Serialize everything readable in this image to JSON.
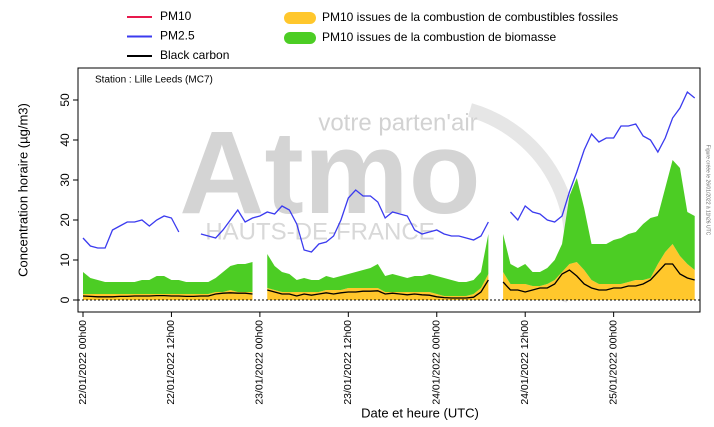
{
  "chart_data": {
    "type": "line",
    "annotation": "Station : Lille Leeds (MC7)",
    "watermark": [
      "votre parten'air",
      "Atmo",
      "HAUTS-DE-FRANCE"
    ],
    "credit": "Figure créée le 26/01/2022 à 11h26 UTC",
    "ylabel": "Concentration horaire (µg/m3)",
    "xlabel": "Date et heure (UTC)",
    "x": [
      "22/01/2022 00h00",
      "22/01/2022 01h00",
      "22/01/2022 02h00",
      "22/01/2022 03h00",
      "22/01/2022 04h00",
      "22/01/2022 05h00",
      "22/01/2022 06h00",
      "22/01/2022 07h00",
      "22/01/2022 08h00",
      "22/01/2022 09h00",
      "22/01/2022 10h00",
      "22/01/2022 11h00",
      "22/01/2022 12h00",
      "22/01/2022 13h00",
      "22/01/2022 14h00",
      "22/01/2022 15h00",
      "22/01/2022 16h00",
      "22/01/2022 17h00",
      "22/01/2022 18h00",
      "22/01/2022 19h00",
      "22/01/2022 20h00",
      "22/01/2022 21h00",
      "22/01/2022 22h00",
      "22/01/2022 23h00",
      "23/01/2022 00h00",
      "23/01/2022 01h00",
      "23/01/2022 02h00",
      "23/01/2022 03h00",
      "23/01/2022 04h00",
      "23/01/2022 05h00",
      "23/01/2022 06h00",
      "23/01/2022 07h00",
      "23/01/2022 08h00",
      "23/01/2022 09h00",
      "23/01/2022 10h00",
      "23/01/2022 11h00",
      "23/01/2022 12h00",
      "23/01/2022 13h00",
      "23/01/2022 14h00",
      "23/01/2022 15h00",
      "23/01/2022 16h00",
      "23/01/2022 17h00",
      "23/01/2022 18h00",
      "23/01/2022 19h00",
      "23/01/2022 20h00",
      "23/01/2022 21h00",
      "23/01/2022 22h00",
      "23/01/2022 23h00",
      "24/01/2022 00h00",
      "24/01/2022 01h00",
      "24/01/2022 02h00",
      "24/01/2022 03h00",
      "24/01/2022 04h00",
      "24/01/2022 05h00",
      "24/01/2022 06h00",
      "24/01/2022 07h00",
      "24/01/2022 08h00",
      "24/01/2022 09h00",
      "24/01/2022 10h00",
      "24/01/2022 11h00",
      "24/01/2022 12h00",
      "24/01/2022 13h00",
      "24/01/2022 14h00",
      "24/01/2022 15h00",
      "24/01/2022 16h00",
      "24/01/2022 17h00",
      "24/01/2022 18h00",
      "24/01/2022 19h00",
      "24/01/2022 20h00",
      "24/01/2022 21h00",
      "24/01/2022 22h00",
      "24/01/2022 23h00",
      "25/01/2022 00h00",
      "25/01/2022 01h00",
      "25/01/2022 02h00",
      "25/01/2022 03h00",
      "25/01/2022 04h00",
      "25/01/2022 05h00",
      "25/01/2022 06h00",
      "25/01/2022 07h00",
      "25/01/2022 08h00",
      "25/01/2022 09h00",
      "25/01/2022 10h00",
      "25/01/2022 11h00"
    ],
    "xticks": [
      "22/01/2022 00h00",
      "22/01/2022 12h00",
      "23/01/2022 00h00",
      "23/01/2022 12h00",
      "24/01/2022 00h00",
      "24/01/2022 12h00",
      "25/01/2022 00h00"
    ],
    "ylim": [
      -3,
      58
    ],
    "yticks": [
      0,
      10,
      20,
      30,
      40,
      50
    ],
    "series": [
      {
        "name": "PM10",
        "type": "line",
        "color": "#e8194c",
        "values": [
          null,
          null,
          null,
          null,
          null,
          null,
          null,
          null,
          null,
          null,
          null,
          null,
          null,
          null,
          null,
          null,
          null,
          null,
          null,
          null,
          null,
          null,
          null,
          null,
          null,
          null,
          null,
          null,
          null,
          null,
          null,
          null,
          null,
          null,
          null,
          null,
          null,
          null,
          null,
          null,
          null,
          null,
          null,
          null,
          null,
          null,
          null,
          null,
          null,
          null,
          null,
          null,
          null,
          null,
          null,
          null,
          null,
          null,
          null,
          null,
          null,
          null,
          null,
          null,
          null,
          null,
          null,
          null,
          null,
          null,
          null,
          null,
          null,
          null,
          null,
          null,
          null,
          null,
          null,
          null,
          null,
          null,
          null,
          null
        ]
      },
      {
        "name": "PM2.5",
        "type": "line",
        "color": "#3b3bef",
        "values": [
          15.5,
          13.5,
          13,
          13,
          17.5,
          18.5,
          19.5,
          19.5,
          20,
          18.5,
          20,
          21,
          20.5,
          17,
          null,
          null,
          16.5,
          16,
          15.5,
          17.5,
          20,
          22.5,
          19.5,
          20.5,
          21,
          22,
          21.5,
          23.5,
          22.5,
          19,
          12.5,
          12,
          14,
          14.5,
          16,
          20,
          25.5,
          27.5,
          26,
          26,
          24.5,
          20.5,
          22,
          21.5,
          21,
          17.5,
          16.5,
          17,
          17.5,
          16.5,
          16,
          16,
          15.5,
          15,
          16,
          19.5,
          null,
          null,
          22,
          20,
          23.5,
          22,
          21.5,
          20,
          19.5,
          21,
          27,
          32,
          37.5,
          41.5,
          39.5,
          40.5,
          40.5,
          43.5,
          43.5,
          44,
          41,
          40,
          37,
          40.5,
          45.5,
          48,
          52,
          50.5
        ]
      },
      {
        "name": "Black carbon",
        "type": "line",
        "color": "#000000",
        "values": [
          1,
          0.9,
          0.8,
          0.8,
          0.8,
          0.9,
          0.9,
          1,
          1,
          1,
          1.1,
          1.1,
          1,
          1,
          0.9,
          0.9,
          1,
          1,
          1.5,
          1.7,
          1.8,
          1.7,
          1.7,
          1.5,
          null,
          2.5,
          2,
          1.5,
          1.5,
          1,
          1.5,
          1.2,
          1.5,
          1.8,
          1.5,
          1.8,
          2,
          2,
          2.2,
          2.2,
          2.3,
          1.5,
          1.7,
          1.5,
          1.3,
          1.5,
          1.3,
          1.2,
          0.8,
          0.6,
          0.5,
          0.5,
          0.5,
          0.7,
          2,
          5,
          null,
          4.5,
          2.5,
          2.5,
          2,
          2.5,
          3,
          3,
          4,
          6.5,
          7.5,
          6,
          4,
          3,
          2.5,
          2.5,
          3,
          3,
          3.5,
          3.5,
          4,
          5,
          7,
          9,
          9,
          6.5,
          5.5,
          5
        ]
      },
      {
        "name": "PM10 issues de la combustion de combustibles fossiles",
        "type": "area",
        "color": "#ffc72c",
        "values": [
          1.5,
          1.5,
          1.5,
          1.5,
          1.5,
          1.5,
          1.5,
          1.5,
          1.5,
          1.5,
          1.5,
          1.5,
          1.5,
          1.5,
          1.5,
          1.5,
          1.5,
          1.5,
          2,
          2,
          2.5,
          2,
          2,
          2,
          null,
          3,
          2.5,
          2,
          2,
          2,
          2,
          2,
          2,
          2.5,
          2.5,
          2.5,
          3,
          3,
          3,
          3,
          3,
          2,
          2,
          2,
          2,
          2,
          2,
          2,
          1.5,
          1,
          1,
          1,
          1,
          1.5,
          3,
          6.5,
          null,
          7,
          4,
          4,
          4,
          3.5,
          3.5,
          4,
          5,
          7,
          9,
          9.5,
          7.5,
          5,
          4,
          4,
          4,
          4,
          4.5,
          5,
          5,
          5.5,
          9,
          12,
          14,
          11,
          9,
          7.5
        ]
      },
      {
        "name": "PM10 issues de la combustion de biomasse",
        "type": "area",
        "color": "#4ccd24",
        "values": [
          5.5,
          4,
          3.5,
          3,
          3,
          3,
          3,
          3,
          3.5,
          3.5,
          4.5,
          4.5,
          3.5,
          3.5,
          3,
          3,
          3,
          3,
          3.5,
          5,
          6,
          7,
          7,
          7.5,
          null,
          8.5,
          6,
          5,
          4.5,
          3,
          3.5,
          3,
          3,
          3.5,
          3,
          3.5,
          3.5,
          4,
          4.5,
          5,
          6,
          4,
          4.5,
          4,
          3.5,
          4,
          4,
          4.5,
          4.5,
          4.5,
          4,
          3.5,
          3.5,
          3.5,
          4,
          10,
          null,
          9.5,
          5,
          4,
          5,
          3.5,
          3.5,
          4,
          5,
          7,
          17,
          21,
          15.5,
          9,
          10,
          10,
          11,
          11.5,
          12,
          12,
          14,
          15,
          12,
          16,
          21,
          22,
          13,
          13.5
        ]
      }
    ]
  }
}
